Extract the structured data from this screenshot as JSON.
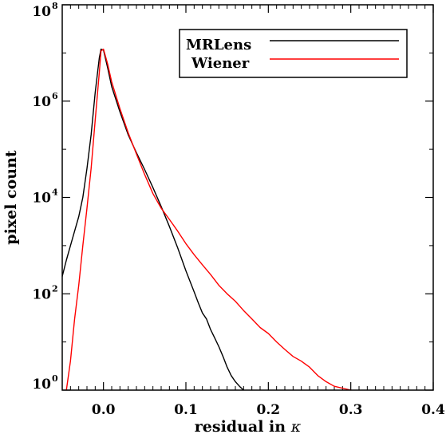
{
  "chart_data": {
    "type": "line",
    "xlabel": "residual in",
    "xlabel_symbol": "κ",
    "ylabel": "pixel count",
    "xlim": [
      -0.05,
      0.4
    ],
    "ylim": [
      1,
      100000000
    ],
    "y_scale": "log",
    "grid": false,
    "legend_position": "top-right",
    "x_ticks": [
      0.0,
      0.1,
      0.2,
      0.3,
      0.4
    ],
    "x_tick_labels": [
      "0.0",
      "0.1",
      "0.2",
      "0.3",
      "0.4"
    ],
    "y_ticks": [
      {
        "value": 1,
        "base": "10",
        "exp": "0"
      },
      {
        "value": 100,
        "base": "10",
        "exp": "2"
      },
      {
        "value": 10000,
        "base": "10",
        "exp": "4"
      },
      {
        "value": 1000000,
        "base": "10",
        "exp": "6"
      },
      {
        "value": 100000000,
        "base": "10",
        "exp": "8"
      }
    ],
    "series": [
      {
        "name": "MRLens",
        "color": "#000000",
        "points": [
          [
            -0.05,
            230
          ],
          [
            -0.045,
            500
          ],
          [
            -0.04,
            1000
          ],
          [
            -0.035,
            2000
          ],
          [
            -0.03,
            4000
          ],
          [
            -0.025,
            10000
          ],
          [
            -0.02,
            40000
          ],
          [
            -0.015,
            200000
          ],
          [
            -0.01,
            1500000
          ],
          [
            -0.005,
            8000000
          ],
          [
            -0.003,
            12000000
          ],
          [
            0.0,
            11500000
          ],
          [
            0.005,
            5000000
          ],
          [
            0.01,
            2000000
          ],
          [
            0.02,
            600000
          ],
          [
            0.03,
            200000
          ],
          [
            0.04,
            85000
          ],
          [
            0.05,
            38000
          ],
          [
            0.06,
            16000
          ],
          [
            0.07,
            6500
          ],
          [
            0.08,
            2500
          ],
          [
            0.09,
            900
          ],
          [
            0.1,
            300
          ],
          [
            0.11,
            110
          ],
          [
            0.115,
            65
          ],
          [
            0.12,
            40
          ],
          [
            0.125,
            30
          ],
          [
            0.13,
            18
          ],
          [
            0.135,
            12
          ],
          [
            0.14,
            8
          ],
          [
            0.145,
            5
          ],
          [
            0.15,
            3
          ],
          [
            0.155,
            2
          ],
          [
            0.16,
            1.5
          ],
          [
            0.165,
            1.2
          ],
          [
            0.17,
            1
          ]
        ]
      },
      {
        "name": "Wiener",
        "color": "#ff0000",
        "points": [
          [
            -0.045,
            1
          ],
          [
            -0.04,
            4
          ],
          [
            -0.035,
            30
          ],
          [
            -0.03,
            150
          ],
          [
            -0.025,
            1000
          ],
          [
            -0.02,
            6000
          ],
          [
            -0.015,
            40000
          ],
          [
            -0.01,
            400000
          ],
          [
            -0.005,
            4000000
          ],
          [
            -0.003,
            11000000
          ],
          [
            0.0,
            12000000
          ],
          [
            0.005,
            6000000
          ],
          [
            0.01,
            2500000
          ],
          [
            0.02,
            700000
          ],
          [
            0.03,
            220000
          ],
          [
            0.04,
            80000
          ],
          [
            0.05,
            30000
          ],
          [
            0.06,
            12000
          ],
          [
            0.07,
            6000
          ],
          [
            0.08,
            3500
          ],
          [
            0.09,
            2000
          ],
          [
            0.1,
            1100
          ],
          [
            0.11,
            650
          ],
          [
            0.12,
            400
          ],
          [
            0.13,
            250
          ],
          [
            0.14,
            150
          ],
          [
            0.15,
            100
          ],
          [
            0.16,
            70
          ],
          [
            0.17,
            45
          ],
          [
            0.18,
            30
          ],
          [
            0.19,
            20
          ],
          [
            0.2,
            15
          ],
          [
            0.21,
            10
          ],
          [
            0.22,
            7
          ],
          [
            0.23,
            5
          ],
          [
            0.24,
            4
          ],
          [
            0.25,
            3
          ],
          [
            0.26,
            2
          ],
          [
            0.27,
            1.5
          ],
          [
            0.28,
            1.2
          ],
          [
            0.3,
            1
          ]
        ]
      }
    ]
  }
}
